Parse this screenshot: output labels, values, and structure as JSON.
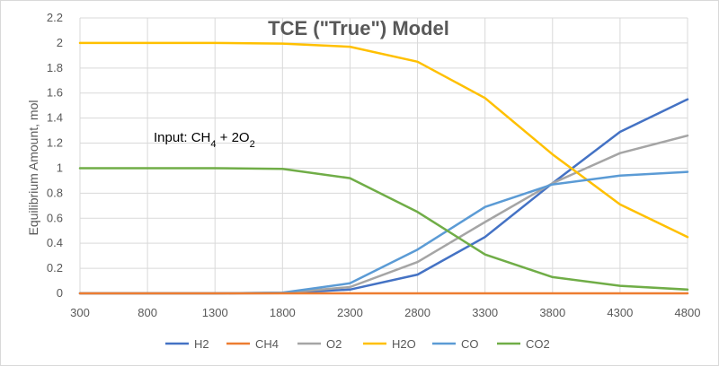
{
  "chart_data": {
    "type": "line",
    "title": "TCE (\"True\") Model",
    "xlabel": "",
    "ylabel": "Equilibrium Amount, mol",
    "x": [
      300,
      800,
      1300,
      1800,
      2300,
      2800,
      3300,
      3800,
      4300,
      4800
    ],
    "x_tick_labels": [
      "300",
      "800",
      "1300",
      "1800",
      "2300",
      "2800",
      "3300",
      "3800",
      "4300",
      "4800"
    ],
    "ylim": [
      0,
      2.2
    ],
    "y_ticks": [
      0,
      0.2,
      0.4,
      0.6,
      0.8,
      1,
      1.2,
      1.4,
      1.6,
      1.8,
      2,
      2.2
    ],
    "y_tick_labels": [
      "0",
      "0.2",
      "0.4",
      "0.6",
      "0.8",
      "1",
      "1.2",
      "1.4",
      "1.6",
      "1.8",
      "2",
      "2.2"
    ],
    "grid": true,
    "legend_position": "bottom",
    "annotation": {
      "prefix": "Input: CH",
      "sub1": "4",
      "middle": " + 2O",
      "sub2": "2"
    },
    "series": [
      {
        "name": "H2",
        "color": "#4472C4",
        "values": [
          0,
          0,
          0,
          0.002,
          0.03,
          0.15,
          0.45,
          0.88,
          1.29,
          1.55
        ]
      },
      {
        "name": "CH4",
        "color": "#ED7D31",
        "values": [
          0,
          0,
          0,
          0,
          0,
          0,
          0,
          0,
          0,
          0
        ]
      },
      {
        "name": "O2",
        "color": "#A5A5A5",
        "values": [
          0,
          0,
          0,
          0.004,
          0.05,
          0.25,
          0.57,
          0.88,
          1.12,
          1.26
        ]
      },
      {
        "name": "H2O",
        "color": "#FFC000",
        "values": [
          2,
          2,
          2,
          1.995,
          1.97,
          1.85,
          1.56,
          1.11,
          0.71,
          0.45
        ]
      },
      {
        "name": "CO",
        "color": "#5B9BD5",
        "values": [
          0,
          0,
          0,
          0.006,
          0.08,
          0.35,
          0.69,
          0.87,
          0.94,
          0.97
        ]
      },
      {
        "name": "CO2",
        "color": "#70AD47",
        "values": [
          1,
          1,
          1,
          0.995,
          0.92,
          0.65,
          0.31,
          0.13,
          0.06,
          0.03
        ]
      }
    ]
  }
}
